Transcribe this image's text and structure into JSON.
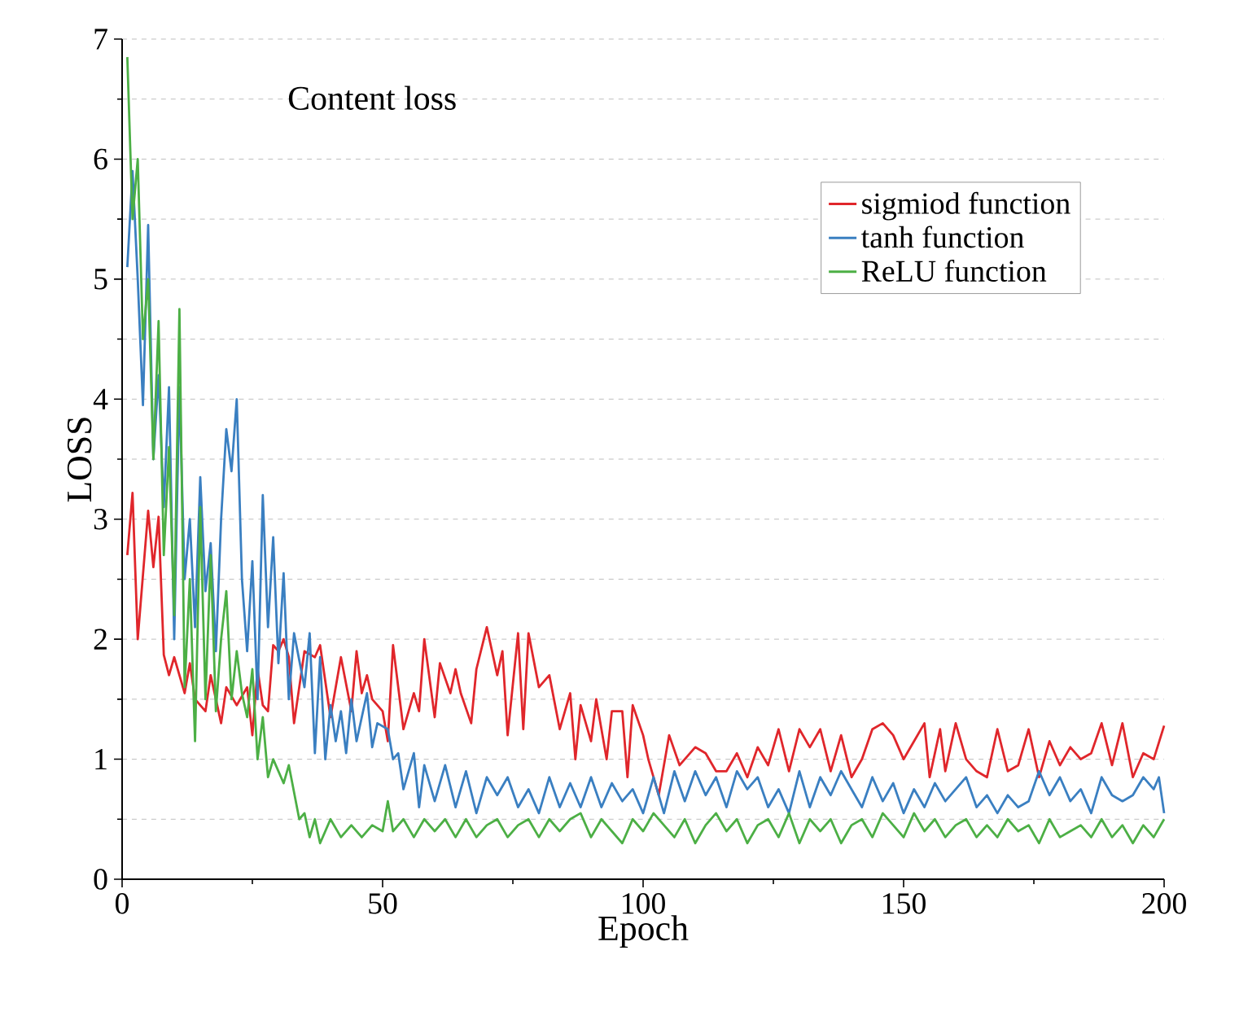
{
  "chart_data": {
    "type": "line",
    "title": "Content loss",
    "xlabel": "Epoch",
    "ylabel": "LOSS",
    "xlim": [
      0,
      200
    ],
    "xticks": [
      0,
      50,
      100,
      150,
      200
    ],
    "ylim": [
      0,
      7
    ],
    "yticks": [
      0,
      1,
      2,
      3,
      4,
      5,
      6,
      7
    ],
    "grid": "y",
    "legend": "top right",
    "line_style": "solid",
    "series": [
      {
        "name": "sigmiod function",
        "color": "#e0262b",
        "x": [
          1,
          2,
          3,
          5,
          6,
          7,
          8,
          9,
          10,
          12,
          13,
          14,
          16,
          17,
          19,
          20,
          22,
          24,
          25,
          26,
          27,
          28,
          29,
          30,
          31,
          32,
          33,
          35,
          37,
          38,
          40,
          42,
          44,
          45,
          46,
          47,
          48,
          50,
          51,
          52,
          54,
          56,
          57,
          58,
          60,
          61,
          63,
          64,
          65,
          67,
          68,
          70,
          72,
          73,
          74,
          76,
          77,
          78,
          80,
          82,
          84,
          86,
          87,
          88,
          90,
          91,
          93,
          94,
          96,
          97,
          98,
          100,
          101,
          103,
          105,
          107,
          110,
          112,
          114,
          116,
          118,
          120,
          122,
          124,
          126,
          128,
          130,
          132,
          134,
          136,
          138,
          140,
          142,
          144,
          146,
          148,
          150,
          152,
          154,
          155,
          157,
          158,
          160,
          162,
          164,
          166,
          168,
          170,
          172,
          174,
          176,
          178,
          180,
          182,
          184,
          186,
          188,
          190,
          192,
          194,
          196,
          198,
          200
        ],
        "values": [
          2.7,
          3.22,
          2.0,
          3.07,
          2.6,
          3.02,
          1.87,
          1.7,
          1.85,
          1.55,
          1.8,
          1.5,
          1.4,
          1.7,
          1.3,
          1.6,
          1.45,
          1.6,
          1.2,
          1.75,
          1.45,
          1.4,
          1.95,
          1.9,
          2.0,
          1.85,
          1.3,
          1.9,
          1.85,
          1.95,
          1.35,
          1.85,
          1.4,
          1.9,
          1.55,
          1.7,
          1.5,
          1.4,
          1.15,
          1.95,
          1.25,
          1.55,
          1.4,
          2.0,
          1.35,
          1.8,
          1.55,
          1.75,
          1.55,
          1.3,
          1.75,
          2.1,
          1.7,
          1.9,
          1.2,
          2.05,
          1.25,
          2.05,
          1.6,
          1.7,
          1.25,
          1.55,
          1.0,
          1.45,
          1.15,
          1.5,
          1.0,
          1.4,
          1.4,
          0.85,
          1.45,
          1.2,
          1.0,
          0.7,
          1.2,
          0.95,
          1.1,
          1.05,
          0.9,
          0.9,
          1.05,
          0.85,
          1.1,
          0.95,
          1.25,
          0.9,
          1.25,
          1.1,
          1.25,
          0.9,
          1.2,
          0.85,
          1.0,
          1.25,
          1.3,
          1.2,
          1.0,
          1.15,
          1.3,
          0.85,
          1.25,
          0.9,
          1.3,
          1.0,
          0.9,
          0.85,
          1.25,
          0.9,
          0.95,
          1.25,
          0.85,
          1.15,
          0.95,
          1.1,
          1.0,
          1.05,
          1.3,
          0.95,
          1.3,
          0.85,
          1.05,
          1.0,
          1.28
        ]
      },
      {
        "name": "tanh function",
        "color": "#3a7fc1",
        "x": [
          1,
          2,
          3,
          4,
          5,
          6,
          7,
          8,
          9,
          10,
          11,
          12,
          13,
          14,
          15,
          16,
          17,
          18,
          19,
          20,
          21,
          22,
          23,
          24,
          25,
          26,
          27,
          28,
          29,
          30,
          31,
          32,
          33,
          35,
          36,
          37,
          38,
          39,
          40,
          41,
          42,
          43,
          44,
          45,
          46,
          47,
          48,
          49,
          51,
          52,
          53,
          54,
          56,
          57,
          58,
          60,
          62,
          64,
          66,
          68,
          70,
          72,
          74,
          76,
          78,
          80,
          82,
          84,
          86,
          88,
          90,
          92,
          94,
          96,
          98,
          100,
          102,
          104,
          106,
          108,
          110,
          112,
          114,
          116,
          118,
          120,
          122,
          124,
          126,
          128,
          130,
          132,
          134,
          136,
          138,
          140,
          142,
          144,
          146,
          148,
          150,
          152,
          154,
          156,
          158,
          160,
          162,
          164,
          166,
          168,
          170,
          172,
          174,
          176,
          178,
          180,
          182,
          184,
          186,
          188,
          190,
          192,
          194,
          196,
          198,
          199,
          200
        ],
        "values": [
          5.1,
          5.9,
          5.0,
          3.95,
          5.45,
          3.5,
          4.2,
          3.1,
          4.1,
          2.0,
          4.1,
          2.5,
          3.0,
          2.1,
          3.35,
          2.4,
          2.8,
          1.9,
          3.0,
          3.75,
          3.4,
          4.0,
          2.5,
          1.9,
          2.65,
          1.5,
          3.2,
          2.1,
          2.85,
          1.8,
          2.55,
          1.5,
          2.05,
          1.6,
          2.05,
          1.05,
          1.85,
          1.0,
          1.45,
          1.15,
          1.4,
          1.05,
          1.5,
          1.15,
          1.35,
          1.55,
          1.1,
          1.3,
          1.25,
          1.0,
          1.05,
          0.75,
          1.05,
          0.6,
          0.95,
          0.65,
          0.95,
          0.6,
          0.9,
          0.55,
          0.85,
          0.7,
          0.85,
          0.6,
          0.75,
          0.55,
          0.85,
          0.6,
          0.8,
          0.6,
          0.85,
          0.6,
          0.8,
          0.65,
          0.75,
          0.55,
          0.85,
          0.55,
          0.9,
          0.65,
          0.9,
          0.7,
          0.85,
          0.6,
          0.9,
          0.75,
          0.85,
          0.6,
          0.75,
          0.55,
          0.9,
          0.6,
          0.85,
          0.7,
          0.9,
          0.75,
          0.6,
          0.85,
          0.65,
          0.8,
          0.55,
          0.75,
          0.6,
          0.8,
          0.65,
          0.75,
          0.85,
          0.6,
          0.7,
          0.55,
          0.7,
          0.6,
          0.65,
          0.9,
          0.7,
          0.85,
          0.65,
          0.75,
          0.55,
          0.85,
          0.7,
          0.65,
          0.7,
          0.85,
          0.75,
          0.85,
          0.55
        ]
      },
      {
        "name": "ReLU function",
        "color": "#4caf45",
        "x": [
          1,
          2,
          3,
          4,
          5,
          6,
          7,
          8,
          9,
          10,
          11,
          12,
          13,
          14,
          15,
          16,
          17,
          18,
          19,
          20,
          21,
          22,
          23,
          24,
          25,
          26,
          27,
          28,
          29,
          31,
          32,
          34,
          35,
          36,
          37,
          38,
          40,
          42,
          44,
          46,
          48,
          50,
          51,
          52,
          54,
          56,
          58,
          60,
          62,
          64,
          66,
          68,
          70,
          72,
          74,
          76,
          78,
          80,
          82,
          84,
          86,
          88,
          90,
          92,
          94,
          96,
          98,
          100,
          102,
          104,
          106,
          108,
          110,
          112,
          114,
          116,
          118,
          120,
          122,
          124,
          126,
          128,
          130,
          132,
          134,
          136,
          138,
          140,
          142,
          144,
          146,
          148,
          150,
          152,
          154,
          156,
          158,
          160,
          162,
          164,
          166,
          168,
          170,
          172,
          174,
          176,
          178,
          180,
          182,
          184,
          186,
          188,
          190,
          192,
          194,
          196,
          198,
          200
        ],
        "values": [
          6.85,
          5.5,
          6.0,
          4.5,
          5.0,
          3.5,
          4.65,
          2.7,
          3.6,
          2.2,
          4.75,
          1.6,
          2.5,
          1.15,
          3.1,
          1.5,
          2.7,
          1.4,
          2.0,
          2.4,
          1.5,
          1.9,
          1.55,
          1.35,
          1.75,
          1.0,
          1.35,
          0.85,
          1.0,
          0.8,
          0.95,
          0.5,
          0.55,
          0.35,
          0.5,
          0.3,
          0.5,
          0.35,
          0.45,
          0.35,
          0.45,
          0.4,
          0.65,
          0.4,
          0.5,
          0.35,
          0.5,
          0.4,
          0.5,
          0.35,
          0.5,
          0.35,
          0.45,
          0.5,
          0.35,
          0.45,
          0.5,
          0.35,
          0.5,
          0.4,
          0.5,
          0.55,
          0.35,
          0.5,
          0.4,
          0.3,
          0.5,
          0.4,
          0.55,
          0.45,
          0.35,
          0.5,
          0.3,
          0.45,
          0.55,
          0.4,
          0.5,
          0.3,
          0.45,
          0.5,
          0.35,
          0.55,
          0.3,
          0.5,
          0.4,
          0.5,
          0.3,
          0.45,
          0.5,
          0.35,
          0.55,
          0.45,
          0.35,
          0.55,
          0.4,
          0.5,
          0.35,
          0.45,
          0.5,
          0.35,
          0.45,
          0.35,
          0.5,
          0.4,
          0.45,
          0.3,
          0.5,
          0.35,
          0.4,
          0.45,
          0.35,
          0.5,
          0.35,
          0.45,
          0.3,
          0.45,
          0.35,
          0.5
        ]
      }
    ]
  }
}
